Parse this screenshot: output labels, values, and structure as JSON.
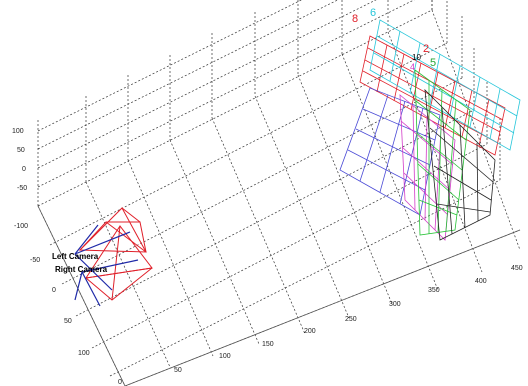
{
  "camera_labels": {
    "left": "Left Camera",
    "right": "Right Camera"
  },
  "pattern_labels": [
    {
      "id": "pattern-8",
      "text": "8",
      "color": "#e0202a"
    },
    {
      "id": "pattern-6",
      "text": "6",
      "color": "#26c6da"
    },
    {
      "id": "pattern-2",
      "text": "2",
      "color": "#e0202a"
    },
    {
      "id": "pattern-5",
      "text": "5",
      "color": "#25a535"
    },
    {
      "id": "pattern-4",
      "text": "4",
      "color": "#d23cc8"
    },
    {
      "id": "pattern-small",
      "text": "10",
      "color": "#000000"
    }
  ],
  "z_ticks": [
    "100",
    "50",
    "0",
    "-50"
  ],
  "y_ticks": [
    "-100",
    "-50",
    "0",
    "50",
    "100"
  ],
  "x_ticks": [
    "0",
    "50",
    "100",
    "150",
    "200",
    "250",
    "300",
    "350",
    "400",
    "450"
  ],
  "colors": {
    "grid": "#333333",
    "camera_frustum": "#e0202a",
    "camera_axes": "#1f2aa8",
    "pattern_blue": "#4a4ad6",
    "pattern_magenta": "#d23cc8",
    "pattern_green": "#25c235",
    "pattern_black": "#222222",
    "pattern_red": "#e0202a",
    "pattern_cyan": "#26c6da"
  }
}
